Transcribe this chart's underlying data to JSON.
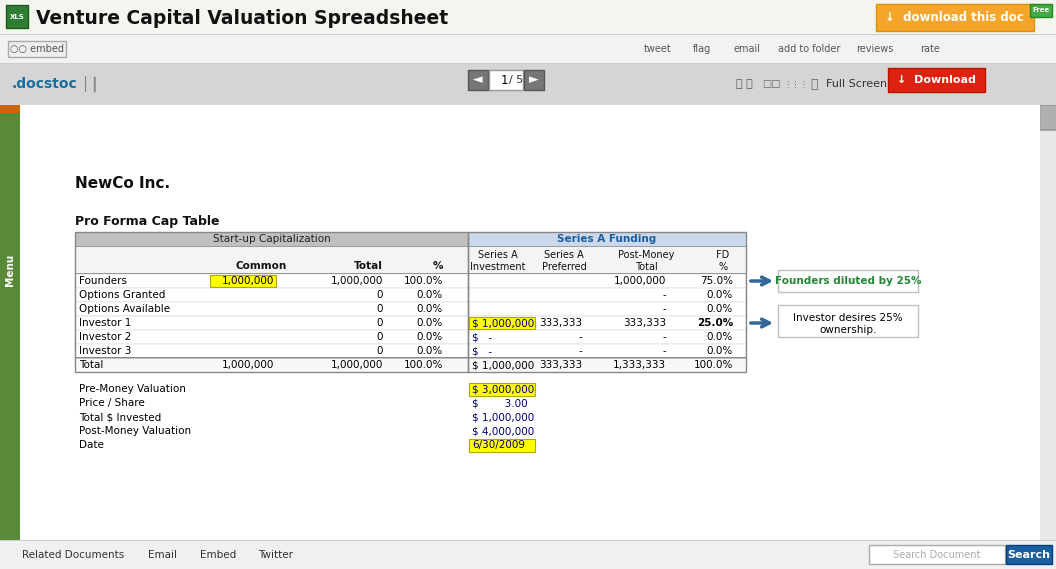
{
  "title": "Venture Capital Valuation Spreadsheet",
  "company": "NewCo Inc.",
  "table_title": "Pro Forma Cap Table",
  "rows": [
    {
      "label": "Founders",
      "common": "1,000,000",
      "total": "1,000,000",
      "pct": "100.0%",
      "sa_inv": "",
      "sa_pref": "",
      "pm_total": "1,000,000",
      "fd_pct": "75.0%",
      "common_hl": true,
      "sa_inv_hl": false,
      "fd_bold": false
    },
    {
      "label": "Options Granted",
      "common": "",
      "total": "0",
      "pct": "0.0%",
      "sa_inv": "",
      "sa_pref": "",
      "pm_total": "-",
      "fd_pct": "0.0%",
      "common_hl": false,
      "sa_inv_hl": false,
      "fd_bold": false
    },
    {
      "label": "Options Available",
      "common": "",
      "total": "0",
      "pct": "0.0%",
      "sa_inv": "",
      "sa_pref": "",
      "pm_total": "-",
      "fd_pct": "0.0%",
      "common_hl": false,
      "sa_inv_hl": false,
      "fd_bold": false
    },
    {
      "label": "Investor 1",
      "common": "",
      "total": "0",
      "pct": "0.0%",
      "sa_inv": "$ 1,000,000",
      "sa_pref": "333,333",
      "pm_total": "333,333",
      "fd_pct": "25.0%",
      "common_hl": false,
      "sa_inv_hl": true,
      "fd_bold": true
    },
    {
      "label": "Investor 2",
      "common": "",
      "total": "0",
      "pct": "0.0%",
      "sa_inv": "$   -",
      "sa_pref": "-",
      "pm_total": "-",
      "fd_pct": "0.0%",
      "common_hl": false,
      "sa_inv_hl": false,
      "fd_bold": false
    },
    {
      "label": "Investor 3",
      "common": "",
      "total": "0",
      "pct": "0.0%",
      "sa_inv": "$   -",
      "sa_pref": "-",
      "pm_total": "-",
      "fd_pct": "0.0%",
      "common_hl": false,
      "sa_inv_hl": false,
      "fd_bold": false
    }
  ],
  "total_row": {
    "label": "Total",
    "common": "1,000,000",
    "total": "1,000,000",
    "pct": "100.0%",
    "sa_inv": "$ 1,000,000",
    "sa_pref": "333,333",
    "pm_total": "1,333,333",
    "fd_pct": "100.0%"
  },
  "summary_rows": [
    {
      "label": "Pre-Money Valuation",
      "value": "$ 3,000,000",
      "hl": true
    },
    {
      "label": "Price / Share",
      "value": "$        3.00",
      "hl": false
    },
    {
      "label": "Total $ Invested",
      "value": "$ 1,000,000",
      "hl": false
    },
    {
      "label": "Post-Money Valuation",
      "value": "$ 4,000,000",
      "hl": false
    },
    {
      "label": "Date",
      "value": "6/30/2009",
      "hl": true
    }
  ],
  "ann1_text": "Founders diluted by 25%",
  "ann2_text": "Investor desires 25%\nownership.",
  "social_items": [
    [
      "tweet",
      644
    ],
    [
      "flag",
      693
    ],
    [
      "email",
      733
    ],
    [
      "add to folder",
      778
    ],
    [
      "reviews",
      856
    ],
    [
      "rate",
      920
    ]
  ],
  "bottom_items": [
    [
      "Related Documents",
      22
    ],
    [
      "Email",
      148
    ],
    [
      "Embed",
      200
    ],
    [
      "Twitter",
      258
    ]
  ]
}
